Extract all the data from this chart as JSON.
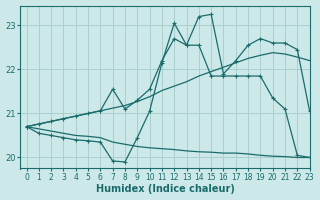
{
  "xlabel": "Humidex (Indice chaleur)",
  "bg_color": "#cce8e8",
  "line_color": "#1a6b6b",
  "grid_color": "#aacfcf",
  "xlim": [
    -0.5,
    23
  ],
  "ylim": [
    19.75,
    23.45
  ],
  "yticks": [
    20,
    21,
    22,
    23
  ],
  "xticks": [
    0,
    1,
    2,
    3,
    4,
    5,
    6,
    7,
    8,
    9,
    10,
    11,
    12,
    13,
    14,
    15,
    16,
    17,
    18,
    19,
    20,
    21,
    22,
    23
  ],
  "line1_x": [
    0,
    1,
    2,
    3,
    4,
    5,
    6,
    7,
    8,
    9,
    10,
    11,
    12,
    13,
    14,
    15,
    16,
    17,
    18,
    19,
    20,
    21,
    22,
    23
  ],
  "line1_y": [
    20.7,
    20.65,
    20.6,
    20.55,
    20.5,
    20.48,
    20.45,
    20.35,
    20.3,
    20.25,
    20.22,
    20.2,
    20.18,
    20.15,
    20.13,
    20.12,
    20.1,
    20.1,
    20.08,
    20.05,
    20.03,
    20.02,
    20.0,
    20.0
  ],
  "line2_x": [
    0,
    1,
    2,
    3,
    4,
    5,
    6,
    7,
    8,
    9,
    10,
    11,
    12,
    13,
    14,
    15,
    16,
    17,
    18,
    19,
    20,
    21,
    22,
    23
  ],
  "line2_y": [
    20.7,
    20.55,
    20.5,
    20.45,
    20.4,
    20.38,
    20.35,
    19.92,
    19.9,
    20.45,
    21.05,
    22.15,
    23.05,
    22.55,
    22.55,
    21.85,
    21.85,
    21.85,
    21.85,
    21.85,
    21.35,
    21.1,
    20.05,
    20.0
  ],
  "line3_x": [
    0,
    1,
    2,
    3,
    4,
    5,
    6,
    7,
    8,
    9,
    10,
    11,
    12,
    13,
    14,
    15,
    16,
    17,
    18,
    19,
    20,
    21,
    22,
    23
  ],
  "line3_y": [
    20.7,
    20.76,
    20.82,
    20.88,
    20.94,
    21.0,
    21.06,
    21.12,
    21.18,
    21.27,
    21.38,
    21.52,
    21.62,
    21.72,
    21.85,
    21.95,
    22.05,
    22.15,
    22.25,
    22.32,
    22.38,
    22.35,
    22.28,
    22.2
  ],
  "line4_x": [
    0,
    1,
    2,
    3,
    4,
    5,
    6,
    7,
    8,
    9,
    10,
    11,
    12,
    13,
    14,
    15,
    16,
    17,
    18,
    19,
    20,
    21,
    22,
    23
  ],
  "line4_y": [
    20.7,
    20.76,
    20.82,
    20.88,
    20.94,
    21.0,
    21.06,
    21.55,
    21.1,
    21.3,
    21.55,
    22.2,
    22.7,
    22.55,
    23.2,
    23.25,
    21.9,
    22.2,
    22.55,
    22.7,
    22.6,
    22.6,
    22.45,
    21.05
  ],
  "marker": "+"
}
